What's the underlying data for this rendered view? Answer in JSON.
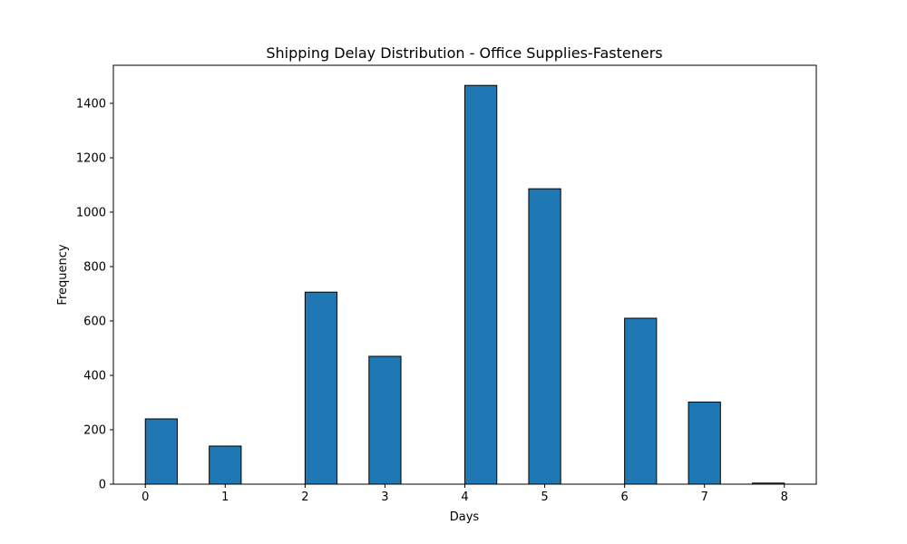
{
  "chart_data": {
    "type": "bar",
    "title": "Shipping Delay Distribution - Office Supplies-Fasteners",
    "xlabel": "Days",
    "ylabel": "Frequency",
    "xlim": [
      -0.4,
      8.4
    ],
    "ylim": [
      0,
      1540
    ],
    "xticks": [
      0,
      1,
      2,
      3,
      4,
      5,
      6,
      7,
      8
    ],
    "yticks": [
      0,
      200,
      400,
      600,
      800,
      1000,
      1200,
      1400
    ],
    "bin_width": 0.4,
    "bins": [
      {
        "start": 0.0,
        "value": 240
      },
      {
        "start": 0.8,
        "value": 140
      },
      {
        "start": 2.0,
        "value": 706
      },
      {
        "start": 2.8,
        "value": 470
      },
      {
        "start": 4.0,
        "value": 1466
      },
      {
        "start": 4.8,
        "value": 1086
      },
      {
        "start": 6.0,
        "value": 610
      },
      {
        "start": 6.8,
        "value": 302
      },
      {
        "start": 7.6,
        "value": 4
      }
    ],
    "grid": false,
    "colors": {
      "bar": "#1f77b4",
      "edge": "#000000"
    }
  }
}
